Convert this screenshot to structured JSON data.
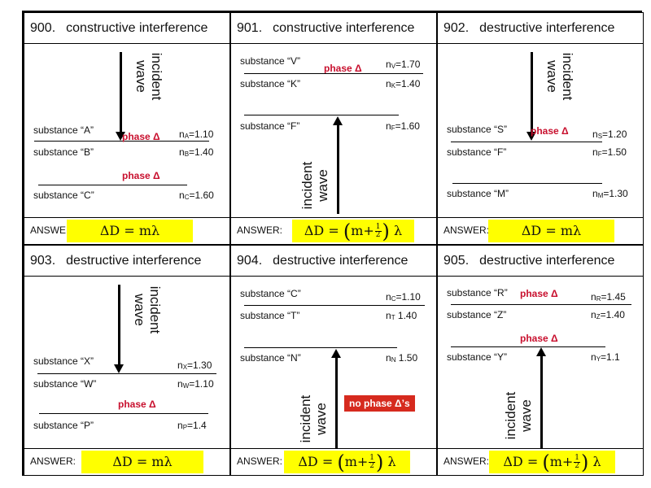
{
  "answer_label": "ANSWER:",
  "answer_label_truncated": "ANSWEF",
  "incident_wave": [
    "incident",
    "wave"
  ],
  "colors": {
    "answer_highlight": "#ffff00",
    "phase_text": "#c8102e",
    "no_phase_bg": "#d62a1e"
  },
  "panels": [
    {
      "number": "900.",
      "title": "constructive interference",
      "answer_formula": "ΔD = mλ",
      "substances": [
        {
          "name": "substance “A”",
          "n_symbol": "n",
          "n_subscript": "A",
          "n_value": "=1.10"
        },
        {
          "name": "substance “B”",
          "n_symbol": "n",
          "n_subscript": "B",
          "n_value": "=1.40"
        },
        {
          "name": "substance “C”",
          "n_symbol": "n",
          "n_subscript": "C",
          "n_value": "=1.60"
        }
      ],
      "phase_labels": [
        "phase Δ",
        "phase Δ"
      ]
    },
    {
      "number": "901.",
      "title": "constructive interference",
      "answer_formula": {
        "lhs": "ΔD = ",
        "m": "m+",
        "num": "1",
        "den": "2",
        "lambda": "λ"
      },
      "substances": [
        {
          "name": "substance “V”",
          "n_symbol": "n",
          "n_subscript": "V",
          "n_value": "=1.70"
        },
        {
          "name": "substance “K”",
          "n_symbol": "n",
          "n_subscript": "K",
          "n_value": "=1.40"
        },
        {
          "name": "substance “F”",
          "n_symbol": "n",
          "n_subscript": "F",
          "n_value": "=1.60"
        }
      ],
      "phase_labels": [
        "phase Δ"
      ]
    },
    {
      "number": "902.",
      "title": "destructive interference",
      "answer_formula": "ΔD = mλ",
      "substances": [
        {
          "name": "substance “S”",
          "n_symbol": "n",
          "n_subscript": "S",
          "n_value": "=1.20"
        },
        {
          "name": "substance “F”",
          "n_symbol": "n",
          "n_subscript": "F",
          "n_value": "=1.50"
        },
        {
          "name": "substance “M”",
          "n_symbol": "n",
          "n_subscript": "M",
          "n_value": "=1.30"
        }
      ],
      "phase_labels": [
        "phase Δ"
      ]
    },
    {
      "number": "903.",
      "title": "destructive interference",
      "answer_formula": "ΔD = mλ",
      "substances": [
        {
          "name": "substance “X”",
          "n_symbol": "n",
          "n_subscript": "X",
          "n_value": "=1.30"
        },
        {
          "name": "substance “W”",
          "n_symbol": "n",
          "n_subscript": "W",
          "n_value": "=1.10"
        },
        {
          "name": "substance “P”",
          "n_symbol": "n",
          "n_subscript": "P",
          "n_value": "=1.4"
        }
      ],
      "phase_labels": [
        "phase Δ"
      ]
    },
    {
      "number": "904.",
      "title": "destructive interference",
      "answer_formula": {
        "lhs": "ΔD = ",
        "m": "m+",
        "num": "1",
        "den": "2",
        "lambda": "λ"
      },
      "substances": [
        {
          "name": "substance “C”",
          "n_symbol": "n",
          "n_subscript": "C",
          "n_value": "=1.10"
        },
        {
          "name": "substance “T”",
          "n_symbol": "n",
          "n_subscript": "T",
          "n_value": " 1.40"
        },
        {
          "name": "substance “N”",
          "n_symbol": "n",
          "n_subscript": "N",
          "n_value": " 1.50"
        }
      ],
      "phase_labels": [],
      "no_phase_label": "no phase Δ’s"
    },
    {
      "number": "905.",
      "title": "destructive interference",
      "answer_formula": {
        "lhs": "ΔD = ",
        "m": "m+",
        "num": "1",
        "den": "2",
        "lambda": "λ"
      },
      "substances": [
        {
          "name": "substance “R”",
          "n_symbol": "n",
          "n_subscript": "R",
          "n_value": "=1.45"
        },
        {
          "name": "substance “Z”",
          "n_symbol": "n",
          "n_subscript": "Z",
          "n_value": "=1.40"
        },
        {
          "name": "substance “Y”",
          "n_symbol": "n",
          "n_subscript": "Y",
          "n_value": "=1.1"
        }
      ],
      "phase_labels": [
        "phase Δ",
        "phase Δ"
      ]
    }
  ]
}
